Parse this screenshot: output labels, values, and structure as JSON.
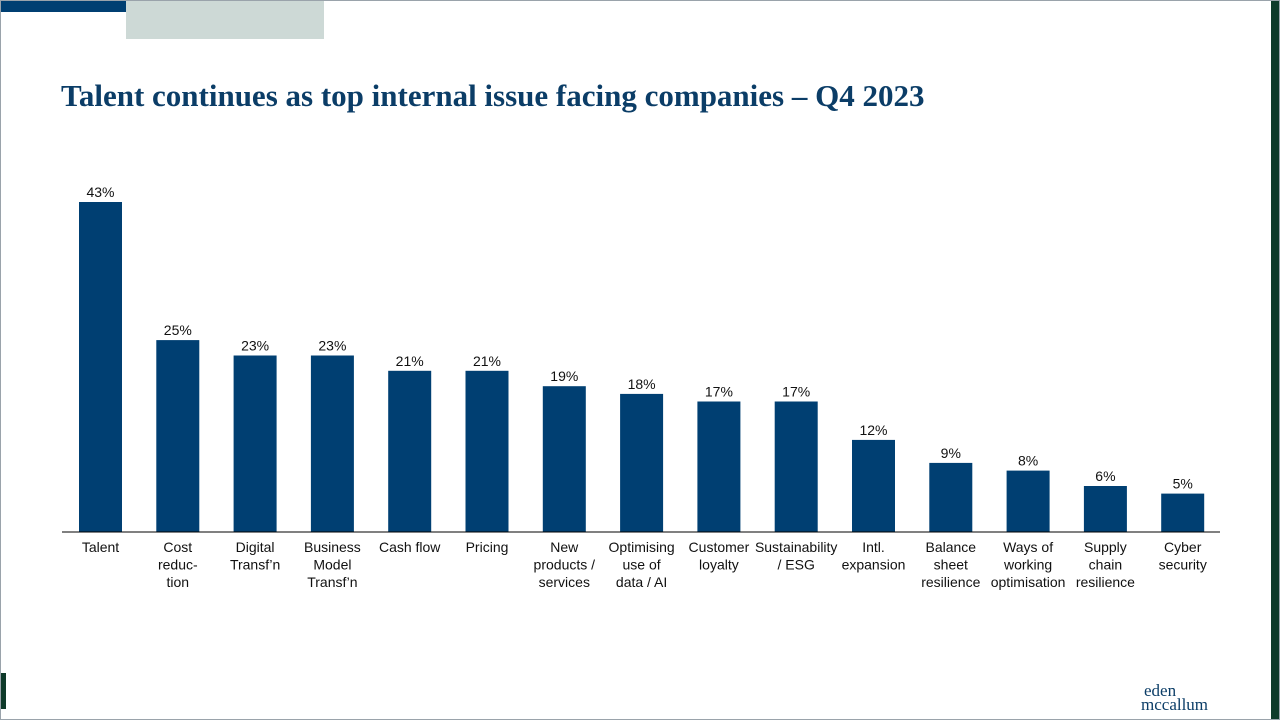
{
  "slide": {
    "title": "Talent continues as top internal issue facing companies – Q4 2023"
  },
  "logo": {
    "line1": "eden",
    "line2": "mccallum"
  },
  "colors": {
    "bar": "#003f72",
    "title": "#0b3d67",
    "accent_dark": "#003f72",
    "accent_light": "#cdd9d6",
    "edge": "#0e3a2a"
  },
  "chart_data": {
    "type": "bar",
    "title": "Talent continues as top internal issue facing companies – Q4 2023",
    "xlabel": "",
    "ylabel": "",
    "ylim": [
      0,
      43
    ],
    "grid": false,
    "legend": "none",
    "categories": [
      "Talent",
      "Cost reduc-tion",
      "Digital Transf'n",
      "Business Model Transf'n",
      "Cash flow",
      "Pricing",
      "New products / services",
      "Optimising use of data / AI",
      "Customer loyalty",
      "Sustainability / ESG",
      "Intl. expansion",
      "Balance sheet resilience",
      "Ways of working optimisation",
      "Supply chain resilience",
      "Cyber security"
    ],
    "category_lines": [
      [
        "Talent"
      ],
      [
        "Cost",
        "reduc-",
        "tion"
      ],
      [
        "Digital",
        "Transf’n"
      ],
      [
        "Business",
        "Model",
        "Transf’n"
      ],
      [
        "Cash flow"
      ],
      [
        "Pricing"
      ],
      [
        "New",
        "products /",
        "services"
      ],
      [
        "Optimising",
        "use of",
        "data / AI"
      ],
      [
        "Customer",
        "loyalty"
      ],
      [
        "Sustainability",
        "/ ESG"
      ],
      [
        "Intl.",
        "expansion"
      ],
      [
        "Balance",
        "sheet",
        "resilience"
      ],
      [
        "Ways of",
        "working",
        "optimisation"
      ],
      [
        "Supply",
        "chain",
        "resilience"
      ],
      [
        "Cyber",
        "security"
      ]
    ],
    "values": [
      43,
      25,
      23,
      23,
      21,
      21,
      19,
      18,
      17,
      17,
      12,
      9,
      8,
      6,
      5
    ],
    "labels": [
      "43%",
      "25%",
      "23%",
      "23%",
      "21%",
      "21%",
      "19%",
      "18%",
      "17%",
      "17%",
      "12%",
      "9%",
      "8%",
      "6%",
      "5%"
    ]
  }
}
